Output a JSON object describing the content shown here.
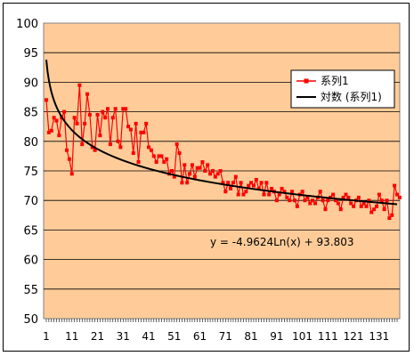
{
  "chart_data": {
    "type": "line",
    "title": "",
    "xlabel": "",
    "ylabel": "",
    "ylim": [
      50,
      100
    ],
    "yticks": [
      50,
      55,
      60,
      65,
      70,
      75,
      80,
      85,
      90,
      95,
      100
    ],
    "xlim": [
      1,
      138
    ],
    "xtick_labels": [
      "1",
      "11",
      "21",
      "31",
      "41",
      "51",
      "61",
      "71",
      "81",
      "91",
      "101",
      "111",
      "121",
      "131"
    ],
    "grid": "horizontal",
    "plot_background": "#ffcc99",
    "legend_position": "right",
    "series": [
      {
        "name": "系列1",
        "color": "#ff0000",
        "marker": "square",
        "x_start": 1,
        "values": [
          87,
          81.5,
          81.8,
          84,
          83.5,
          81,
          84,
          85,
          78.5,
          77,
          74.5,
          84,
          83,
          89.5,
          79.5,
          83,
          88,
          84.5,
          79,
          78.5,
          84.5,
          81,
          85,
          84,
          85.5,
          79.5,
          84,
          85.5,
          80,
          79,
          85.5,
          85.5,
          82.5,
          82,
          78,
          83,
          76.5,
          81.5,
          81.5,
          83,
          79,
          78.5,
          77.5,
          76.5,
          77.5,
          77.5,
          76.5,
          77,
          74.5,
          75,
          74,
          79.5,
          78,
          73,
          76,
          73,
          74.5,
          76,
          74,
          75.5,
          75.5,
          76.5,
          75,
          76,
          74.5,
          75,
          74,
          74.5,
          75,
          73,
          71.5,
          73,
          72,
          73,
          74,
          71,
          73,
          71,
          71.5,
          72.5,
          73,
          72.5,
          73.5,
          72,
          73,
          71,
          73,
          71,
          72,
          71.5,
          70,
          71,
          72,
          71.5,
          70.5,
          70,
          71.5,
          70,
          69,
          71,
          71.5,
          70,
          70.5,
          69.5,
          70,
          69.5,
          70.5,
          71.5,
          70,
          68.5,
          70,
          70.5,
          71,
          70,
          69.5,
          68.5,
          70.5,
          71,
          70.5,
          69.5,
          69,
          70,
          70.5,
          69,
          69.5,
          69,
          70,
          68,
          68.5,
          69,
          71,
          70,
          68.5,
          70,
          67,
          67.5,
          72.5,
          71,
          70.5
        ],
        "points_shown": 138
      },
      {
        "name": "対数 (系列1)",
        "color": "#000000",
        "kind": "log_trendline",
        "coef_a": -4.9624,
        "coef_b": 93.803
      }
    ],
    "annotations": [
      {
        "text": "y = -4.9624Ln(x) + 93.803"
      }
    ]
  }
}
